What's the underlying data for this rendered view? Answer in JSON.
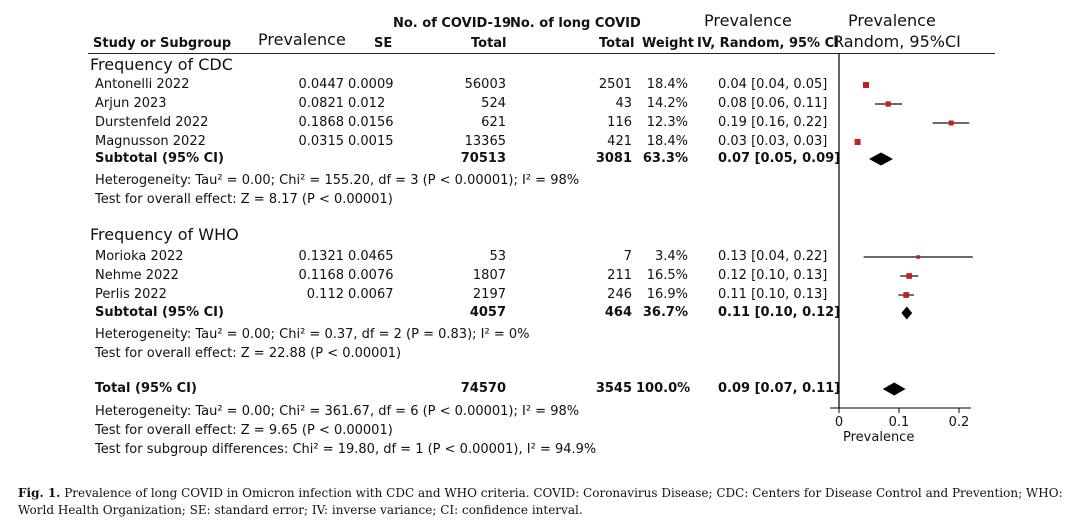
{
  "headers": {
    "prevalence_col": "Prevalence",
    "se": "SE",
    "study": "Study or Subgroup",
    "covid_top": "No. of COVID-19",
    "covid_total": "Total",
    "long_top": "No. of long COVID",
    "long_total": "Total",
    "weight": "Weight",
    "ci_top": "Prevalence",
    "ci_sub": "IV, Random, 95% CI",
    "plot_top": "Prevalence",
    "plot_sub": "Random, 95%CI"
  },
  "groups": [
    {
      "title": "Frequency of CDC",
      "studies": [
        {
          "name": "Antonelli 2022",
          "prev": "0.0447",
          "se": "0.0009",
          "covid": "56003",
          "long": "2501",
          "weight": "18.4%",
          "ci": "0.04 [0.04, 0.05]",
          "est": 0.045,
          "lo": 0.04,
          "hi": 0.05
        },
        {
          "name": "Arjun 2023",
          "prev": "0.0821",
          "se": "0.012",
          "covid": "524",
          "long": "43",
          "weight": "14.2%",
          "ci": "0.08 [0.06, 0.11]",
          "est": 0.082,
          "lo": 0.06,
          "hi": 0.105
        },
        {
          "name": "Durstenfeld 2022",
          "prev": "0.1868",
          "se": "0.0156",
          "covid": "621",
          "long": "116",
          "weight": "12.3%",
          "ci": "0.19 [0.16, 0.22]",
          "est": 0.187,
          "lo": 0.156,
          "hi": 0.217
        },
        {
          "name": "Magnusson 2022",
          "prev": "0.0315",
          "se": "0.0015",
          "covid": "13365",
          "long": "421",
          "weight": "18.4%",
          "ci": "0.03 [0.03, 0.03]",
          "est": 0.031,
          "lo": 0.029,
          "hi": 0.034
        }
      ],
      "subtotal": {
        "label": "Subtotal (95% CI)",
        "covid": "70513",
        "long": "3081",
        "weight": "63.3%",
        "ci": "0.07 [0.05, 0.09]",
        "est": 0.07,
        "lo": 0.05,
        "hi": 0.09
      },
      "heterogeneity": "Heterogeneity: Tau² = 0.00; Chi² = 155.20, df = 3 (P < 0.00001); I² = 98%",
      "overall": "Test for overall effect: Z = 8.17 (P < 0.00001)"
    },
    {
      "title": "Frequency of WHO",
      "studies": [
        {
          "name": "Morioka 2022",
          "prev": "0.1321",
          "se": "0.0465",
          "covid": "53",
          "long": "7",
          "weight": "3.4%",
          "ci": "0.13 [0.04, 0.22]",
          "est": 0.132,
          "lo": 0.041,
          "hi": 0.223
        },
        {
          "name": "Nehme 2022",
          "prev": "0.1168",
          "se": "0.0076",
          "covid": "1807",
          "long": "211",
          "weight": "16.5%",
          "ci": "0.12 [0.10, 0.13]",
          "est": 0.117,
          "lo": 0.102,
          "hi": 0.132
        },
        {
          "name": "Perlis 2022",
          "prev": "0.112",
          "se": "0.0067",
          "covid": "2197",
          "long": "246",
          "weight": "16.9%",
          "ci": "0.11 [0.10, 0.13]",
          "est": 0.112,
          "lo": 0.099,
          "hi": 0.125
        }
      ],
      "subtotal": {
        "label": "Subtotal (95% CI)",
        "covid": "4057",
        "long": "464",
        "weight": "36.7%",
        "ci": "0.11 [0.10, 0.12]",
        "est": 0.113,
        "lo": 0.104,
        "hi": 0.122
      },
      "heterogeneity": "Heterogeneity: Tau² = 0.00; Chi² = 0.37, df = 2 (P = 0.83); I² = 0%",
      "overall": "Test for overall effect: Z = 22.88 (P < 0.00001)"
    }
  ],
  "total": {
    "label": "Total (95% CI)",
    "covid": "74570",
    "long": "3545",
    "weight": "100.0%",
    "ci": "0.09 [0.07, 0.11]",
    "est": 0.092,
    "lo": 0.073,
    "hi": 0.111,
    "heterogeneity": "Heterogeneity: Tau² = 0.00; Chi² = 361.67, df = 6 (P < 0.00001); I² = 98%",
    "overall": "Test for overall effect: Z = 9.65 (P < 0.00001)",
    "subgroup": "Test for subgroup differences: Chi² = 19.80, df = 1 (P < 0.00001), I² = 94.9%"
  },
  "chart_data": {
    "type": "forest",
    "x_ticks": [
      "0",
      "0.1",
      "0.2"
    ],
    "x_tick_values": [
      0,
      0.1,
      0.2
    ],
    "xlim": [
      -0.015,
      0.22
    ],
    "xlabel": "Prevalence",
    "colors": {
      "square": "#c0201e",
      "line": "#111111",
      "diamond": "#000000"
    }
  },
  "caption": {
    "label": "Fig. 1.",
    "text": "Prevalence of long COVID in Omicron infection with CDC and WHO criteria. COVID: Coronavirus Disease; CDC: Centers for Disease Control and Prevention; WHO: World Health Organization; SE: standard error; IV: inverse variance; CI: confidence interval."
  }
}
